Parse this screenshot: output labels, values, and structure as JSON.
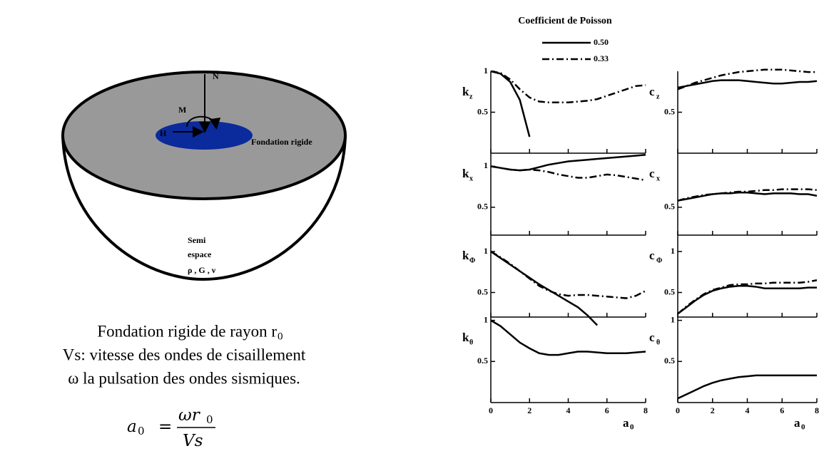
{
  "diagram": {
    "n": "N",
    "m": "M",
    "h": "H",
    "foundation": "Fondation rigide",
    "space1": "Semi",
    "space2": "espace",
    "space3": "ρ , G , ν"
  },
  "caption": {
    "line1": "Fondation rigide de rayon r",
    "line1_sub": "0",
    "line2": "Vs: vitesse des ondes de cisaillement",
    "line3": "ω la pulsation des ondes sismiques.",
    "formula": {
      "lhs": "a",
      "lhs_sub": "0",
      "eq": "=",
      "num": "ωr",
      "num_sub": "0",
      "den": "Vs"
    }
  },
  "legend": {
    "title": "Coefficient de Poisson",
    "entries": [
      {
        "name": "0.50",
        "style": "solid"
      },
      {
        "name": "0.33",
        "style": "dashdot"
      }
    ]
  },
  "chart_data": [
    {
      "type": "line",
      "ylabel": "k",
      "ylabel_sub": "z",
      "xlim": [
        0,
        8
      ],
      "xticks": [
        0,
        2,
        4,
        6,
        8
      ],
      "ylim": [
        0,
        1
      ],
      "yticks": [
        0.5,
        1
      ],
      "x": [
        0,
        0.5,
        1,
        1.5,
        2,
        2.5,
        3,
        3.5,
        4,
        4.5,
        5,
        5.5,
        6,
        6.5,
        7,
        7.5,
        8
      ],
      "series": [
        {
          "style": "solid",
          "values": [
            1,
            0.97,
            0.87,
            0.65,
            0.2,
            null,
            null,
            null,
            null,
            null,
            null,
            null,
            null,
            null,
            null,
            null,
            null
          ]
        },
        {
          "style": "dashdot",
          "values": [
            1,
            0.98,
            0.9,
            0.78,
            0.68,
            0.63,
            0.62,
            0.62,
            0.62,
            0.63,
            0.64,
            0.66,
            0.7,
            0.74,
            0.78,
            0.82,
            0.83
          ]
        }
      ]
    },
    {
      "type": "line",
      "ylabel": "c",
      "ylabel_sub": "z",
      "xlim": [
        0,
        8
      ],
      "xticks": [
        0,
        2,
        4,
        6,
        8
      ],
      "ylim": [
        0,
        1
      ],
      "yticks": [
        0.5
      ],
      "x": [
        0,
        0.5,
        1,
        1.5,
        2,
        2.5,
        3,
        3.5,
        4,
        4.5,
        5,
        5.5,
        6,
        6.5,
        7,
        7.5,
        8
      ],
      "series": [
        {
          "style": "solid",
          "values": [
            0.8,
            0.82,
            0.84,
            0.86,
            0.88,
            0.89,
            0.89,
            0.89,
            0.88,
            0.87,
            0.86,
            0.85,
            0.85,
            0.86,
            0.87,
            0.87,
            0.88
          ]
        },
        {
          "style": "dashdot",
          "values": [
            0.78,
            0.82,
            0.86,
            0.89,
            0.92,
            0.95,
            0.97,
            0.99,
            1.0,
            1.01,
            1.02,
            1.02,
            1.02,
            1.01,
            1.0,
            0.99,
            0.99
          ]
        }
      ]
    },
    {
      "type": "line",
      "ylabel": "k",
      "ylabel_sub": "x",
      "xlim": [
        0,
        8
      ],
      "xticks": [
        0,
        2,
        4,
        6,
        8
      ],
      "ylim": [
        0.16,
        1.16
      ],
      "yticks": [
        0.5,
        1
      ],
      "x": [
        0,
        0.5,
        1,
        1.5,
        2,
        2.5,
        3,
        3.5,
        4,
        4.5,
        5,
        5.5,
        6,
        6.5,
        7,
        7.5,
        8
      ],
      "series": [
        {
          "style": "solid",
          "values": [
            1,
            0.98,
            0.96,
            0.95,
            0.96,
            0.99,
            1.02,
            1.04,
            1.06,
            1.07,
            1.08,
            1.09,
            1.1,
            1.11,
            1.12,
            1.13,
            1.14
          ]
        },
        {
          "style": "dashdot",
          "values": [
            1,
            0.98,
            0.96,
            0.95,
            0.96,
            0.95,
            0.93,
            0.9,
            0.88,
            0.86,
            0.86,
            0.88,
            0.9,
            0.89,
            0.87,
            0.85,
            0.83
          ]
        }
      ]
    },
    {
      "type": "line",
      "ylabel": "c",
      "ylabel_sub": "x",
      "xlim": [
        0,
        8
      ],
      "xticks": [
        0,
        2,
        4,
        6,
        8
      ],
      "ylim": [
        0.16,
        1.16
      ],
      "yticks": [
        0.5
      ],
      "x": [
        0,
        0.5,
        1,
        1.5,
        2,
        2.5,
        3,
        3.5,
        4,
        4.5,
        5,
        5.5,
        6,
        6.5,
        7,
        7.5,
        8
      ],
      "series": [
        {
          "style": "solid",
          "values": [
            0.58,
            0.6,
            0.62,
            0.64,
            0.66,
            0.67,
            0.67,
            0.68,
            0.68,
            0.67,
            0.66,
            0.67,
            0.67,
            0.67,
            0.66,
            0.66,
            0.64
          ]
        },
        {
          "style": "dashdot",
          "values": [
            0.58,
            0.61,
            0.63,
            0.65,
            0.66,
            0.67,
            0.68,
            0.69,
            0.69,
            0.7,
            0.71,
            0.71,
            0.72,
            0.72,
            0.72,
            0.72,
            0.71
          ]
        }
      ]
    },
    {
      "type": "line",
      "ylabel": "k",
      "ylabel_sub": "Φ",
      "xlim": [
        0,
        8
      ],
      "xticks": [
        0,
        2,
        4,
        6,
        8
      ],
      "ylim": [
        0.2,
        1.2
      ],
      "yticks": [
        0.5,
        1
      ],
      "x": [
        0,
        0.5,
        1,
        1.5,
        2,
        2.5,
        3,
        3.5,
        4,
        4.5,
        5,
        5.5,
        6,
        6.5,
        7,
        7.5,
        8
      ],
      "series": [
        {
          "style": "solid",
          "values": [
            1,
            0.92,
            0.84,
            0.76,
            0.68,
            0.6,
            0.53,
            0.46,
            0.39,
            0.32,
            0.22,
            0.1,
            null,
            null,
            null,
            null,
            null
          ]
        },
        {
          "style": "dashdot",
          "values": [
            1,
            0.93,
            0.85,
            0.76,
            0.67,
            0.58,
            0.52,
            0.48,
            0.46,
            0.47,
            0.47,
            0.46,
            0.45,
            0.44,
            0.43,
            0.46,
            0.52
          ]
        }
      ]
    },
    {
      "type": "line",
      "ylabel": "c",
      "ylabel_sub": "Φ",
      "xlim": [
        0,
        8
      ],
      "xticks": [
        0,
        2,
        4,
        6,
        8
      ],
      "ylim": [
        0.2,
        1.2
      ],
      "yticks": [
        0.5,
        1
      ],
      "x": [
        0,
        0.5,
        1,
        1.5,
        2,
        2.5,
        3,
        3.5,
        4,
        4.5,
        5,
        5.5,
        6,
        6.5,
        7,
        7.5,
        8
      ],
      "series": [
        {
          "style": "solid",
          "values": [
            0.24,
            0.32,
            0.4,
            0.47,
            0.52,
            0.55,
            0.57,
            0.58,
            0.58,
            0.57,
            0.55,
            0.55,
            0.55,
            0.55,
            0.55,
            0.56,
            0.56
          ]
        },
        {
          "style": "dashdot",
          "values": [
            0.24,
            0.33,
            0.41,
            0.48,
            0.53,
            0.56,
            0.59,
            0.6,
            0.6,
            0.61,
            0.61,
            0.62,
            0.62,
            0.62,
            0.62,
            0.63,
            0.65
          ]
        }
      ]
    },
    {
      "type": "line",
      "ylabel": "k",
      "ylabel_sub": "θ",
      "xlim": [
        0,
        8
      ],
      "xticks": [
        0,
        2,
        4,
        6,
        8
      ],
      "ylim": [
        0,
        1.04
      ],
      "yticks": [
        0.5,
        1
      ],
      "xlabel": "a",
      "xlabel_sub": "0",
      "xtick_labels": true,
      "x": [
        0,
        0.5,
        1,
        1.5,
        2,
        2.5,
        3,
        3.5,
        4,
        4.5,
        5,
        5.5,
        6,
        6.5,
        7,
        7.5,
        8
      ],
      "series": [
        {
          "style": "solid",
          "values": [
            1,
            0.93,
            0.83,
            0.73,
            0.66,
            0.6,
            0.58,
            0.58,
            0.6,
            0.62,
            0.62,
            0.61,
            0.6,
            0.6,
            0.6,
            0.61,
            0.62
          ]
        }
      ]
    },
    {
      "type": "line",
      "ylabel": "c",
      "ylabel_sub": "θ",
      "xlim": [
        0,
        8
      ],
      "xticks": [
        0,
        2,
        4,
        6,
        8
      ],
      "ylim": [
        0,
        1.04
      ],
      "yticks": [
        0.5,
        1
      ],
      "xlabel": "a",
      "xlabel_sub": "0",
      "xtick_labels": true,
      "x": [
        0,
        0.5,
        1,
        1.5,
        2,
        2.5,
        3,
        3.5,
        4,
        4.5,
        5,
        5.5,
        6,
        6.5,
        7,
        7.5,
        8
      ],
      "series": [
        {
          "style": "solid",
          "values": [
            0.05,
            0.1,
            0.15,
            0.2,
            0.24,
            0.27,
            0.29,
            0.31,
            0.32,
            0.33,
            0.33,
            0.33,
            0.33,
            0.33,
            0.33,
            0.33,
            0.33
          ]
        }
      ]
    }
  ]
}
